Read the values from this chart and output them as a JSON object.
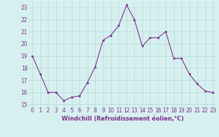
{
  "x": [
    0,
    1,
    2,
    3,
    4,
    5,
    6,
    7,
    8,
    9,
    10,
    11,
    12,
    13,
    14,
    15,
    16,
    17,
    18,
    19,
    20,
    21,
    22,
    23
  ],
  "y": [
    19,
    17.5,
    16,
    16,
    15.3,
    15.6,
    15.7,
    16.8,
    18.1,
    20.3,
    20.7,
    21.5,
    23.2,
    22.0,
    19.8,
    20.5,
    20.5,
    21.0,
    18.8,
    18.8,
    17.5,
    16.7,
    16.1,
    16.0
  ],
  "line_color": "#7B2D8B",
  "marker_color": "#7B2D8B",
  "bg_color": "#d6f0f0",
  "grid_color": "#b0d8d8",
  "xlabel": "Windchill (Refroidissement éolien,°C)",
  "xlabel_color": "#7B2D8B",
  "xlabel_fontsize": 6.0,
  "tick_color": "#7B2D8B",
  "tick_fontsize": 5.5,
  "ylim": [
    14.8,
    23.5
  ],
  "xlim": [
    -0.5,
    23.5
  ],
  "yticks": [
    15,
    16,
    17,
    18,
    19,
    20,
    21,
    22,
    23
  ],
  "xticks": [
    0,
    1,
    2,
    3,
    4,
    5,
    6,
    7,
    8,
    9,
    10,
    11,
    12,
    13,
    14,
    15,
    16,
    17,
    18,
    19,
    20,
    21,
    22,
    23
  ]
}
